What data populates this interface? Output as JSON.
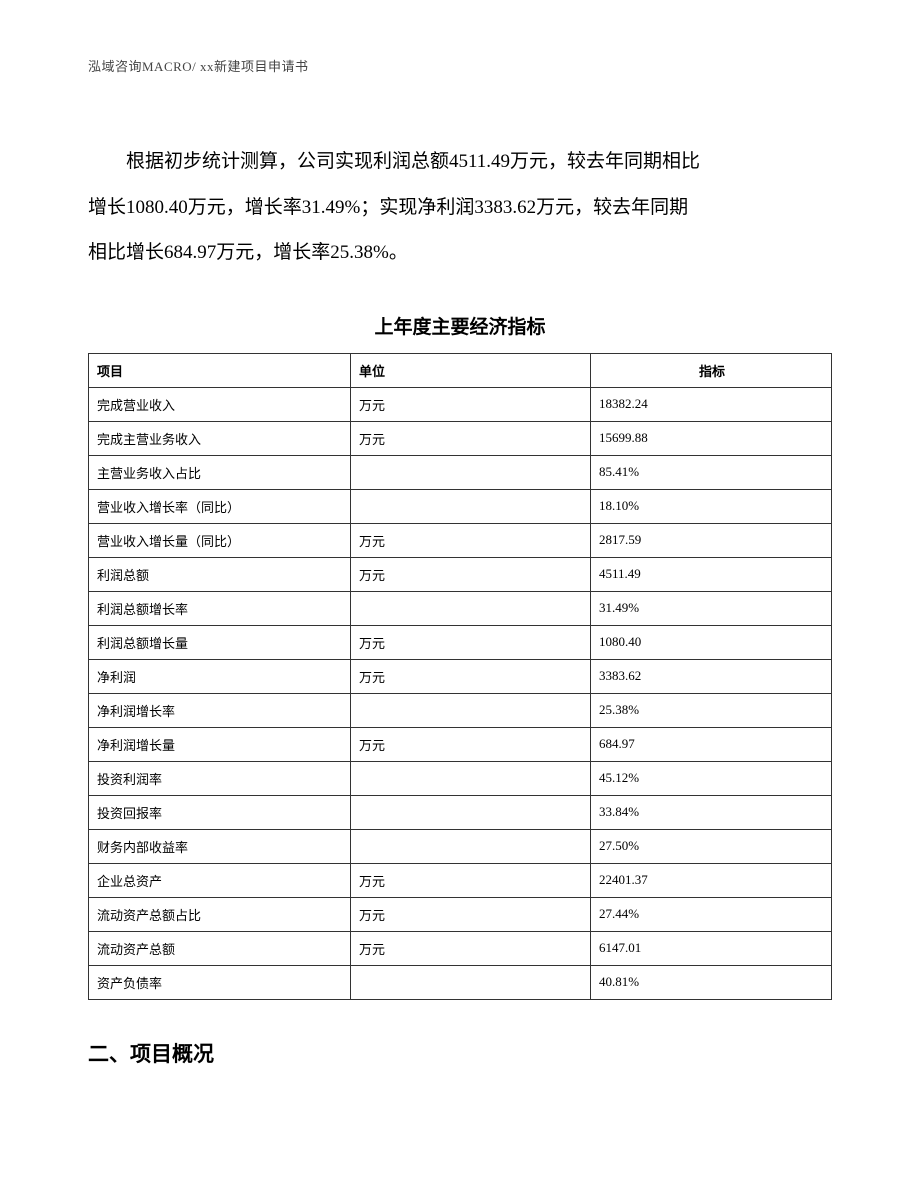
{
  "header": {
    "text": "泓域咨询MACRO/   xx新建项目申请书"
  },
  "paragraph": {
    "line1_part1": "根据初步统计测算，公司实现利润总额4511.49万元，较去年同期相比",
    "line2": "增长1080.40万元，增长率31.49%；实现净利润3383.62万元，较去年同期",
    "line3": "相比增长684.97万元，增长率25.38%。"
  },
  "table": {
    "title": "上年度主要经济指标",
    "columns": {
      "item": "项目",
      "unit": "单位",
      "value": "指标"
    },
    "rows": [
      {
        "item": "完成营业收入",
        "unit": "万元",
        "value": "18382.24"
      },
      {
        "item": "完成主营业务收入",
        "unit": "万元",
        "value": "15699.88"
      },
      {
        "item": "主营业务收入占比",
        "unit": "",
        "value": "85.41%"
      },
      {
        "item": "营业收入增长率（同比）",
        "unit": "",
        "value": "18.10%"
      },
      {
        "item": "营业收入增长量（同比）",
        "unit": "万元",
        "value": "2817.59"
      },
      {
        "item": "利润总额",
        "unit": "万元",
        "value": "4511.49"
      },
      {
        "item": "利润总额增长率",
        "unit": "",
        "value": "31.49%"
      },
      {
        "item": "利润总额增长量",
        "unit": "万元",
        "value": "1080.40"
      },
      {
        "item": "净利润",
        "unit": "万元",
        "value": "3383.62"
      },
      {
        "item": "净利润增长率",
        "unit": "",
        "value": "25.38%"
      },
      {
        "item": "净利润增长量",
        "unit": "万元",
        "value": "684.97"
      },
      {
        "item": "投资利润率",
        "unit": "",
        "value": "45.12%"
      },
      {
        "item": "投资回报率",
        "unit": "",
        "value": "33.84%"
      },
      {
        "item": "财务内部收益率",
        "unit": "",
        "value": "27.50%"
      },
      {
        "item": "企业总资产",
        "unit": "万元",
        "value": "22401.37"
      },
      {
        "item": "流动资产总额占比",
        "unit": "万元",
        "value": "27.44%"
      },
      {
        "item": "流动资产总额",
        "unit": "万元",
        "value": "6147.01"
      },
      {
        "item": "资产负债率",
        "unit": "",
        "value": "40.81%"
      }
    ]
  },
  "section_heading": "二、项目概况"
}
